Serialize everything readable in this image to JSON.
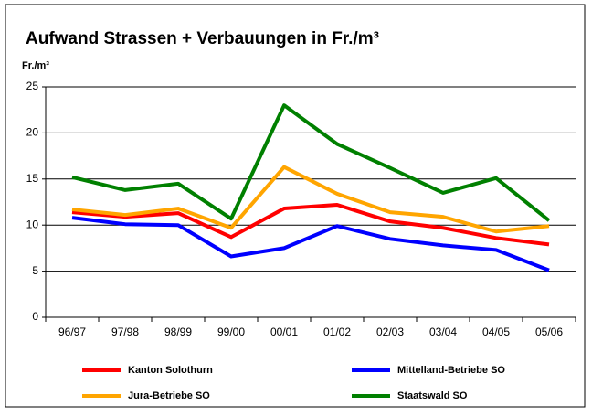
{
  "chart_data": {
    "type": "line",
    "title": "Aufwand Strassen + Verbauungen in Fr./m³",
    "y_label": "Fr./m³",
    "categories": [
      "96/97",
      "97/98",
      "98/99",
      "99/00",
      "00/01",
      "01/02",
      "02/03",
      "03/04",
      "04/05",
      "05/06"
    ],
    "series": [
      {
        "name": "Kanton Solothurn",
        "color": "#ff0000",
        "values": [
          11.4,
          10.9,
          11.3,
          8.7,
          11.8,
          12.2,
          10.4,
          9.7,
          8.6,
          7.9
        ]
      },
      {
        "name": "Mittelland-Betriebe SO",
        "color": "#0000ff",
        "values": [
          10.8,
          10.1,
          10.0,
          6.6,
          7.5,
          9.9,
          8.5,
          7.8,
          7.3,
          5.1
        ]
      },
      {
        "name": "Jura-Betriebe SO",
        "color": "#ffa500",
        "values": [
          11.7,
          11.1,
          11.8,
          9.7,
          16.3,
          13.4,
          11.4,
          10.9,
          9.3,
          9.9
        ]
      },
      {
        "name": "Staatswald SO",
        "color": "#008000",
        "values": [
          15.2,
          13.8,
          14.5,
          10.7,
          23.0,
          18.8,
          16.2,
          13.5,
          15.1,
          10.5
        ]
      }
    ],
    "ylim": [
      0,
      25
    ],
    "yticks": [
      0,
      5,
      10,
      15,
      20,
      25
    ],
    "grid": true
  }
}
